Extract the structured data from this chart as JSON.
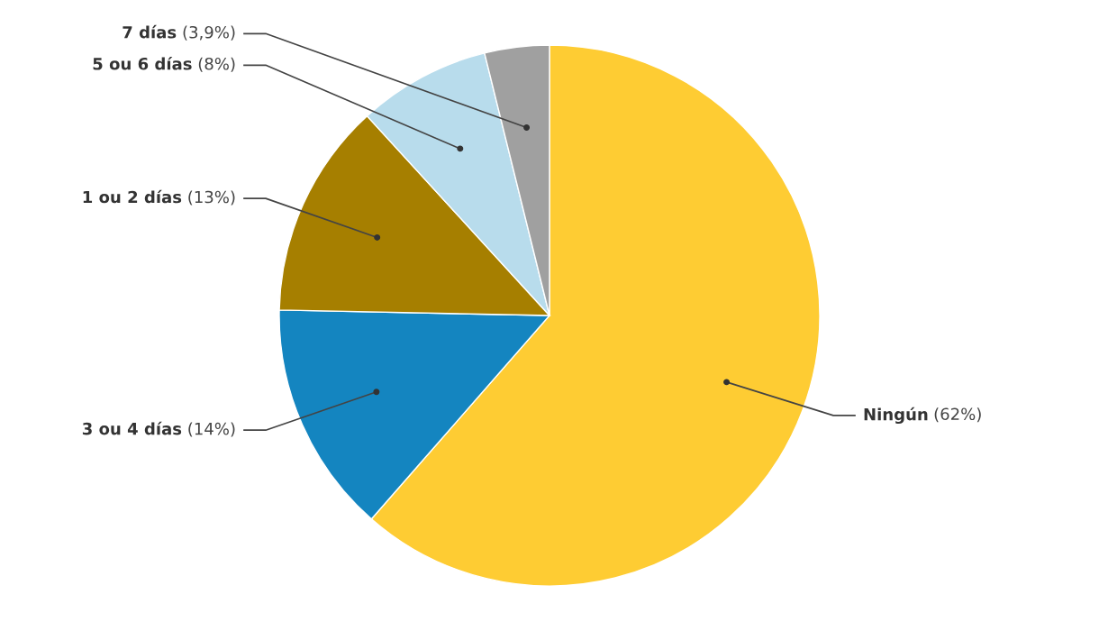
{
  "chart_data": {
    "type": "pie",
    "categories": [
      "Ningún",
      "3 ou 4 días",
      "1 ou 2 días",
      "5 ou 6 días",
      "7 días"
    ],
    "values": [
      62,
      14,
      13,
      8,
      3.9
    ],
    "value_labels": [
      "(62%)",
      "(14%)",
      "(13%)",
      "(8%)",
      "(3,9%)"
    ],
    "colors": [
      "#fecc33",
      "#1485c0",
      "#a67f00",
      "#b8dcec",
      "#a0a0a0"
    ],
    "legend": false
  }
}
